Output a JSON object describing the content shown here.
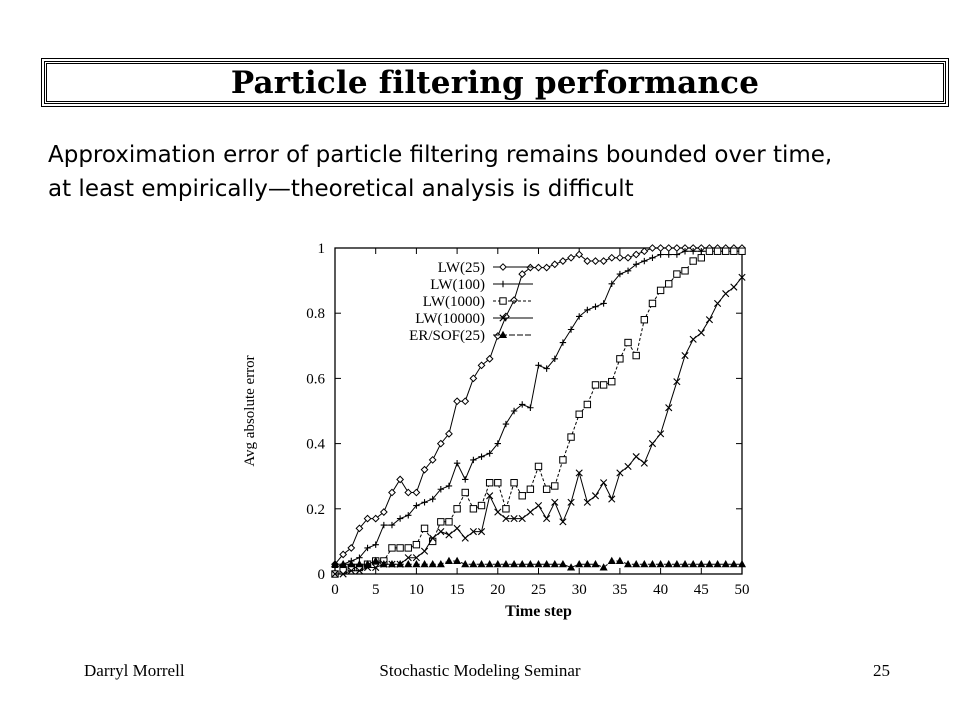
{
  "slide": {
    "title": "Particle filtering performance",
    "body_lines": [
      "Approximation error of particle filtering remains bounded over time,",
      "at least empirically—theoretical analysis is difficult"
    ]
  },
  "footer": {
    "author": "Darryl Morrell",
    "seminar": "Stochastic Modeling Seminar",
    "page": "25"
  },
  "chart_data": {
    "type": "line",
    "title": "",
    "xlabel": "Time step",
    "ylabel": "Avg absolute error",
    "xlim": [
      0,
      50
    ],
    "ylim": [
      0,
      1
    ],
    "xticks": [
      0,
      5,
      10,
      15,
      20,
      25,
      30,
      35,
      40,
      45,
      50
    ],
    "yticks": [
      0,
      0.2,
      0.4,
      0.6,
      0.8,
      1
    ],
    "ytick_labels": [
      "0",
      "0.2",
      "0.4",
      "0.6",
      "0.8",
      "1"
    ],
    "legend_position": "top-left",
    "grid": false,
    "x": [
      0,
      1,
      2,
      3,
      4,
      5,
      6,
      7,
      8,
      9,
      10,
      11,
      12,
      13,
      14,
      15,
      16,
      17,
      18,
      19,
      20,
      21,
      22,
      23,
      24,
      25,
      26,
      27,
      28,
      29,
      30,
      31,
      32,
      33,
      34,
      35,
      36,
      37,
      38,
      39,
      40,
      41,
      42,
      43,
      44,
      45,
      46,
      47,
      48,
      49,
      50
    ],
    "series": [
      {
        "name": "LW(25)",
        "marker": "diamond",
        "values": [
          0.03,
          0.06,
          0.08,
          0.14,
          0.17,
          0.17,
          0.19,
          0.25,
          0.29,
          0.25,
          0.25,
          0.32,
          0.35,
          0.4,
          0.43,
          0.53,
          0.53,
          0.6,
          0.64,
          0.66,
          0.73,
          0.79,
          0.84,
          0.92,
          0.94,
          0.94,
          0.94,
          0.95,
          0.96,
          0.97,
          0.98,
          0.96,
          0.96,
          0.96,
          0.97,
          0.97,
          0.97,
          0.98,
          0.99,
          1.0,
          1.0,
          1.0,
          1.0,
          1.0,
          1.0,
          1.0,
          1.0,
          1.0,
          1.0,
          1.0,
          1.0
        ]
      },
      {
        "name": "LW(100)",
        "marker": "plus",
        "values": [
          0.02,
          0.03,
          0.04,
          0.05,
          0.08,
          0.09,
          0.15,
          0.15,
          0.17,
          0.18,
          0.21,
          0.22,
          0.23,
          0.26,
          0.27,
          0.34,
          0.29,
          0.35,
          0.36,
          0.37,
          0.4,
          0.46,
          0.5,
          0.52,
          0.51,
          0.64,
          0.63,
          0.66,
          0.71,
          0.75,
          0.79,
          0.81,
          0.82,
          0.83,
          0.89,
          0.92,
          0.93,
          0.95,
          0.96,
          0.97,
          0.98,
          0.98,
          0.98,
          0.99,
          0.99,
          0.99,
          0.99,
          0.99,
          0.99,
          0.99,
          0.99
        ]
      },
      {
        "name": "LW(1000)",
        "marker": "square",
        "values": [
          0.0,
          0.01,
          0.02,
          0.02,
          0.03,
          0.04,
          0.04,
          0.08,
          0.08,
          0.08,
          0.09,
          0.14,
          0.1,
          0.16,
          0.16,
          0.2,
          0.25,
          0.2,
          0.21,
          0.28,
          0.28,
          0.2,
          0.28,
          0.24,
          0.26,
          0.33,
          0.26,
          0.27,
          0.35,
          0.42,
          0.49,
          0.52,
          0.58,
          0.58,
          0.59,
          0.66,
          0.71,
          0.67,
          0.78,
          0.83,
          0.87,
          0.89,
          0.92,
          0.93,
          0.96,
          0.97,
          0.99,
          0.99,
          0.99,
          0.99,
          0.99
        ]
      },
      {
        "name": "LW(10000)",
        "marker": "cross",
        "values": [
          0.0,
          0.0,
          0.01,
          0.01,
          0.02,
          0.02,
          0.03,
          0.03,
          0.03,
          0.05,
          0.05,
          0.07,
          0.11,
          0.13,
          0.12,
          0.14,
          0.11,
          0.13,
          0.13,
          0.24,
          0.19,
          0.17,
          0.17,
          0.17,
          0.19,
          0.21,
          0.17,
          0.22,
          0.16,
          0.22,
          0.31,
          0.22,
          0.24,
          0.28,
          0.23,
          0.31,
          0.33,
          0.36,
          0.34,
          0.4,
          0.43,
          0.51,
          0.59,
          0.67,
          0.72,
          0.74,
          0.78,
          0.83,
          0.86,
          0.88,
          0.91
        ]
      },
      {
        "name": "ER/SOF(25)",
        "marker": "triangle",
        "values": [
          0.03,
          0.03,
          0.03,
          0.03,
          0.03,
          0.04,
          0.03,
          0.03,
          0.03,
          0.03,
          0.03,
          0.03,
          0.03,
          0.03,
          0.04,
          0.04,
          0.03,
          0.03,
          0.03,
          0.03,
          0.03,
          0.03,
          0.03,
          0.03,
          0.03,
          0.03,
          0.03,
          0.03,
          0.03,
          0.02,
          0.03,
          0.03,
          0.03,
          0.02,
          0.04,
          0.04,
          0.03,
          0.03,
          0.03,
          0.03,
          0.03,
          0.03,
          0.03,
          0.03,
          0.03,
          0.03,
          0.03,
          0.03,
          0.03,
          0.03,
          0.03
        ]
      }
    ]
  }
}
